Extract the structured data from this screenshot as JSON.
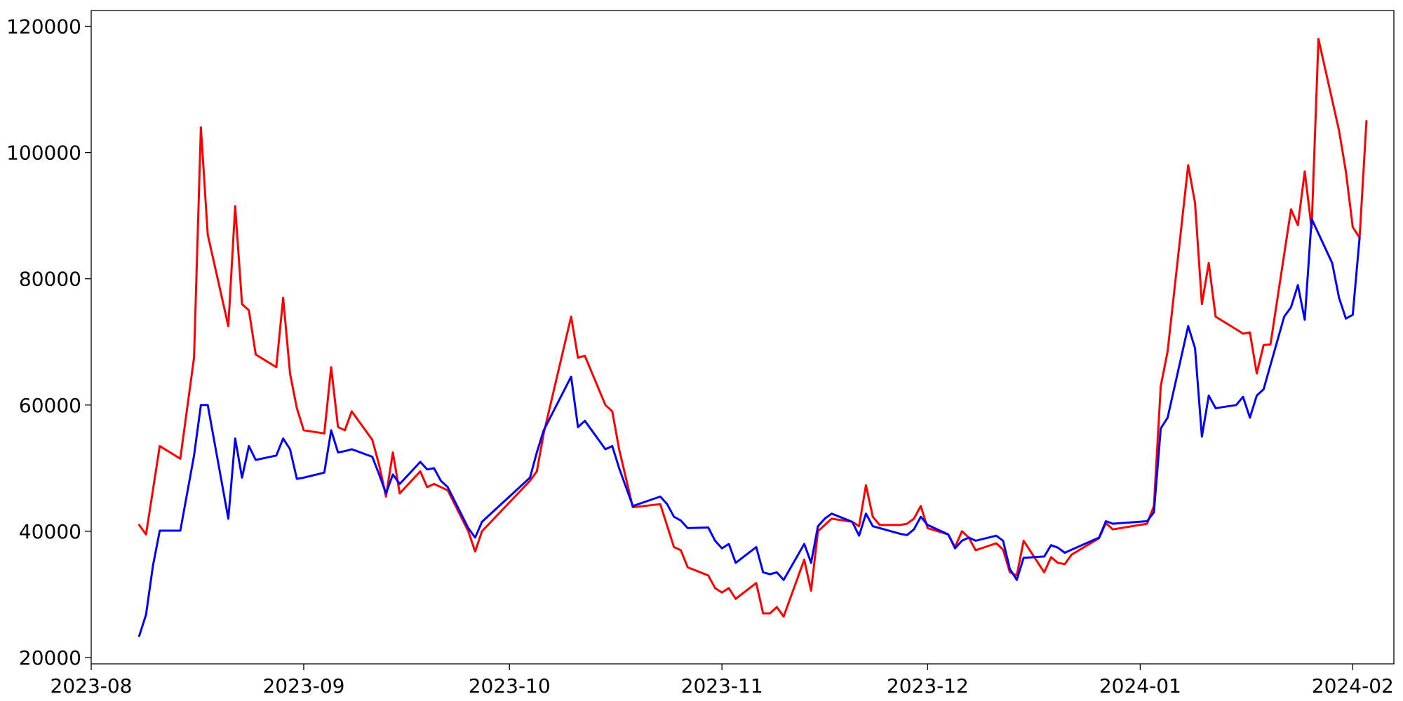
{
  "chart_data": {
    "type": "line",
    "title": "",
    "xlabel": "",
    "ylabel": "",
    "grid": false,
    "x_axis": {
      "type": "date",
      "range": [
        "2023-08-01",
        "2024-02-07"
      ]
    },
    "ylim": [
      19000,
      122500
    ],
    "x_ticks": [
      {
        "date": "2023-08-01",
        "label": "2023-08"
      },
      {
        "date": "2023-09-01",
        "label": "2023-09"
      },
      {
        "date": "2023-10-01",
        "label": "2023-10"
      },
      {
        "date": "2023-11-01",
        "label": "2023-11"
      },
      {
        "date": "2023-12-01",
        "label": "2023-12"
      },
      {
        "date": "2024-01-01",
        "label": "2024-01"
      },
      {
        "date": "2024-02-01",
        "label": "2024-02"
      }
    ],
    "y_ticks": [
      {
        "value": 20000,
        "label": "20000"
      },
      {
        "value": 40000,
        "label": "40000"
      },
      {
        "value": 60000,
        "label": "60000"
      },
      {
        "value": 80000,
        "label": "80000"
      },
      {
        "value": 100000,
        "label": "100000"
      },
      {
        "value": 120000,
        "label": "120000"
      }
    ],
    "series": [
      {
        "color": "#ff0000",
        "points": [
          [
            "2023-08-08",
            41000
          ],
          [
            "2023-08-09",
            39500
          ],
          [
            "2023-08-11",
            53500
          ],
          [
            "2023-08-14",
            51500
          ],
          [
            "2023-08-16",
            67500
          ],
          [
            "2023-08-17",
            104000
          ],
          [
            "2023-08-18",
            87000
          ],
          [
            "2023-08-21",
            72500
          ],
          [
            "2023-08-22",
            91500
          ],
          [
            "2023-08-23",
            76000
          ],
          [
            "2023-08-24",
            75000
          ],
          [
            "2023-08-25",
            68000
          ],
          [
            "2023-08-28",
            66000
          ],
          [
            "2023-08-29",
            77000
          ],
          [
            "2023-08-30",
            65000
          ],
          [
            "2023-08-31",
            59500
          ],
          [
            "2023-09-01",
            56000
          ],
          [
            "2023-09-04",
            55500
          ],
          [
            "2023-09-05",
            66000
          ],
          [
            "2023-09-06",
            56500
          ],
          [
            "2023-09-07",
            56000
          ],
          [
            "2023-09-08",
            59000
          ],
          [
            "2023-09-11",
            54500
          ],
          [
            "2023-09-12",
            50500
          ],
          [
            "2023-09-13",
            45500
          ],
          [
            "2023-09-14",
            52500
          ],
          [
            "2023-09-15",
            46000
          ],
          [
            "2023-09-18",
            49500
          ],
          [
            "2023-09-19",
            47000
          ],
          [
            "2023-09-20",
            47500
          ],
          [
            "2023-09-22",
            46500
          ],
          [
            "2023-09-25",
            40000
          ],
          [
            "2023-09-26",
            36800
          ],
          [
            "2023-09-27",
            40000
          ],
          [
            "2023-10-04",
            48000
          ],
          [
            "2023-10-05",
            49500
          ],
          [
            "2023-10-06",
            55500
          ],
          [
            "2023-10-10",
            74000
          ],
          [
            "2023-10-11",
            67500
          ],
          [
            "2023-10-12",
            67800
          ],
          [
            "2023-10-15",
            60000
          ],
          [
            "2023-10-16",
            59000
          ],
          [
            "2023-10-17",
            53000
          ],
          [
            "2023-10-19",
            43800
          ],
          [
            "2023-10-23",
            44300
          ],
          [
            "2023-10-25",
            37500
          ],
          [
            "2023-10-26",
            37000
          ],
          [
            "2023-10-27",
            34300
          ],
          [
            "2023-10-30",
            33000
          ],
          [
            "2023-10-31",
            31000
          ],
          [
            "2023-11-01",
            30300
          ],
          [
            "2023-11-02",
            31000
          ],
          [
            "2023-11-03",
            29300
          ],
          [
            "2023-11-06",
            31800
          ],
          [
            "2023-11-07",
            27000
          ],
          [
            "2023-11-08",
            27000
          ],
          [
            "2023-11-09",
            28000
          ],
          [
            "2023-11-10",
            26500
          ],
          [
            "2023-11-13",
            35500
          ],
          [
            "2023-11-14",
            30600
          ],
          [
            "2023-11-15",
            40000
          ],
          [
            "2023-11-16",
            41000
          ],
          [
            "2023-11-17",
            42000
          ],
          [
            "2023-11-20",
            41500
          ],
          [
            "2023-11-21",
            40800
          ],
          [
            "2023-11-22",
            47300
          ],
          [
            "2023-11-23",
            42300
          ],
          [
            "2023-11-24",
            41000
          ],
          [
            "2023-11-27",
            41000
          ],
          [
            "2023-11-28",
            41200
          ],
          [
            "2023-11-29",
            42000
          ],
          [
            "2023-11-30",
            44000
          ],
          [
            "2023-12-01",
            40500
          ],
          [
            "2023-12-04",
            39500
          ],
          [
            "2023-12-05",
            37500
          ],
          [
            "2023-12-06",
            40000
          ],
          [
            "2023-12-07",
            39000
          ],
          [
            "2023-12-08",
            37000
          ],
          [
            "2023-12-11",
            38100
          ],
          [
            "2023-12-12",
            37100
          ],
          [
            "2023-12-13",
            33500
          ],
          [
            "2023-12-14",
            33000
          ],
          [
            "2023-12-15",
            38500
          ],
          [
            "2023-12-18",
            33500
          ],
          [
            "2023-12-19",
            35900
          ],
          [
            "2023-12-20",
            35000
          ],
          [
            "2023-12-21",
            34800
          ],
          [
            "2023-12-22",
            36300
          ],
          [
            "2023-12-26",
            38900
          ],
          [
            "2023-12-27",
            41300
          ],
          [
            "2023-12-28",
            40300
          ],
          [
            "2024-01-02",
            41200
          ],
          [
            "2024-01-03",
            44000
          ],
          [
            "2024-01-04",
            63000
          ],
          [
            "2024-01-05",
            68500
          ],
          [
            "2024-01-08",
            98000
          ],
          [
            "2024-01-09",
            92000
          ],
          [
            "2024-01-10",
            76000
          ],
          [
            "2024-01-11",
            82500
          ],
          [
            "2024-01-12",
            74000
          ],
          [
            "2024-01-15",
            72000
          ],
          [
            "2024-01-16",
            71300
          ],
          [
            "2024-01-17",
            71500
          ],
          [
            "2024-01-18",
            65000
          ],
          [
            "2024-01-19",
            69500
          ],
          [
            "2024-01-20",
            69600
          ],
          [
            "2024-01-23",
            91000
          ],
          [
            "2024-01-24",
            88500
          ],
          [
            "2024-01-25",
            97000
          ],
          [
            "2024-01-26",
            88000
          ],
          [
            "2024-01-27",
            118000
          ],
          [
            "2024-01-30",
            103500
          ],
          [
            "2024-01-31",
            97000
          ],
          [
            "2024-02-01",
            88200
          ],
          [
            "2024-02-02",
            86500
          ],
          [
            "2024-02-03",
            105000
          ]
        ]
      },
      {
        "color": "#0000ff",
        "points": [
          [
            "2023-08-08",
            23400
          ],
          [
            "2023-08-09",
            26800
          ],
          [
            "2023-08-10",
            34500
          ],
          [
            "2023-08-11",
            40100
          ],
          [
            "2023-08-14",
            40100
          ],
          [
            "2023-08-16",
            52000
          ],
          [
            "2023-08-17",
            60000
          ],
          [
            "2023-08-18",
            60000
          ],
          [
            "2023-08-21",
            42000
          ],
          [
            "2023-08-22",
            54700
          ],
          [
            "2023-08-23",
            48500
          ],
          [
            "2023-08-24",
            53500
          ],
          [
            "2023-08-25",
            51300
          ],
          [
            "2023-08-28",
            52000
          ],
          [
            "2023-08-29",
            54700
          ],
          [
            "2023-08-30",
            53000
          ],
          [
            "2023-08-31",
            48300
          ],
          [
            "2023-09-01",
            48500
          ],
          [
            "2023-09-04",
            49300
          ],
          [
            "2023-09-05",
            56000
          ],
          [
            "2023-09-06",
            52500
          ],
          [
            "2023-09-07",
            52700
          ],
          [
            "2023-09-08",
            53000
          ],
          [
            "2023-09-11",
            51800
          ],
          [
            "2023-09-12",
            49000
          ],
          [
            "2023-09-13",
            46000
          ],
          [
            "2023-09-14",
            49000
          ],
          [
            "2023-09-15",
            47500
          ],
          [
            "2023-09-18",
            51000
          ],
          [
            "2023-09-19",
            49800
          ],
          [
            "2023-09-20",
            50000
          ],
          [
            "2023-09-21",
            48000
          ],
          [
            "2023-09-22",
            47000
          ],
          [
            "2023-09-25",
            40500
          ],
          [
            "2023-09-26",
            39000
          ],
          [
            "2023-09-27",
            41500
          ],
          [
            "2023-10-04",
            48500
          ],
          [
            "2023-10-05",
            52500
          ],
          [
            "2023-10-06",
            56000
          ],
          [
            "2023-10-10",
            64500
          ],
          [
            "2023-10-11",
            56500
          ],
          [
            "2023-10-12",
            57500
          ],
          [
            "2023-10-15",
            53000
          ],
          [
            "2023-10-16",
            53500
          ],
          [
            "2023-10-17",
            50000
          ],
          [
            "2023-10-19",
            44000
          ],
          [
            "2023-10-23",
            45500
          ],
          [
            "2023-10-24",
            44300
          ],
          [
            "2023-10-25",
            42300
          ],
          [
            "2023-10-26",
            41700
          ],
          [
            "2023-10-27",
            40500
          ],
          [
            "2023-10-30",
            40600
          ],
          [
            "2023-10-31",
            38500
          ],
          [
            "2023-11-01",
            37300
          ],
          [
            "2023-11-02",
            38000
          ],
          [
            "2023-11-03",
            35000
          ],
          [
            "2023-11-06",
            37500
          ],
          [
            "2023-11-07",
            33500
          ],
          [
            "2023-11-08",
            33200
          ],
          [
            "2023-11-09",
            33500
          ],
          [
            "2023-11-10",
            32300
          ],
          [
            "2023-11-13",
            38000
          ],
          [
            "2023-11-14",
            35000
          ],
          [
            "2023-11-15",
            40800
          ],
          [
            "2023-11-16",
            42000
          ],
          [
            "2023-11-17",
            42800
          ],
          [
            "2023-11-20",
            41500
          ],
          [
            "2023-11-21",
            39300
          ],
          [
            "2023-11-22",
            42800
          ],
          [
            "2023-11-23",
            40800
          ],
          [
            "2023-11-27",
            39600
          ],
          [
            "2023-11-28",
            39400
          ],
          [
            "2023-11-29",
            40300
          ],
          [
            "2023-11-30",
            42300
          ],
          [
            "2023-12-01",
            41000
          ],
          [
            "2023-12-04",
            39500
          ],
          [
            "2023-12-05",
            37300
          ],
          [
            "2023-12-06",
            38500
          ],
          [
            "2023-12-07",
            39000
          ],
          [
            "2023-12-08",
            38500
          ],
          [
            "2023-12-11",
            39300
          ],
          [
            "2023-12-12",
            38500
          ],
          [
            "2023-12-13",
            34000
          ],
          [
            "2023-12-14",
            32300
          ],
          [
            "2023-12-15",
            35800
          ],
          [
            "2023-12-18",
            36000
          ],
          [
            "2023-12-19",
            37800
          ],
          [
            "2023-12-20",
            37400
          ],
          [
            "2023-12-21",
            36600
          ],
          [
            "2023-12-26",
            39000
          ],
          [
            "2023-12-27",
            41600
          ],
          [
            "2023-12-28",
            41200
          ],
          [
            "2024-01-02",
            41600
          ],
          [
            "2024-01-03",
            43000
          ],
          [
            "2024-01-04",
            56300
          ],
          [
            "2024-01-05",
            58000
          ],
          [
            "2024-01-08",
            72500
          ],
          [
            "2024-01-09",
            69000
          ],
          [
            "2024-01-10",
            55000
          ],
          [
            "2024-01-11",
            61500
          ],
          [
            "2024-01-12",
            59500
          ],
          [
            "2024-01-15",
            60000
          ],
          [
            "2024-01-16",
            61300
          ],
          [
            "2024-01-17",
            58000
          ],
          [
            "2024-01-18",
            61500
          ],
          [
            "2024-01-19",
            62500
          ],
          [
            "2024-01-22",
            74000
          ],
          [
            "2024-01-23",
            75500
          ],
          [
            "2024-01-24",
            79000
          ],
          [
            "2024-01-25",
            73500
          ],
          [
            "2024-01-26",
            89500
          ],
          [
            "2024-01-29",
            82500
          ],
          [
            "2024-01-30",
            77000
          ],
          [
            "2024-01-31",
            73700
          ],
          [
            "2024-02-01",
            74300
          ],
          [
            "2024-02-02",
            86500
          ]
        ]
      }
    ]
  }
}
